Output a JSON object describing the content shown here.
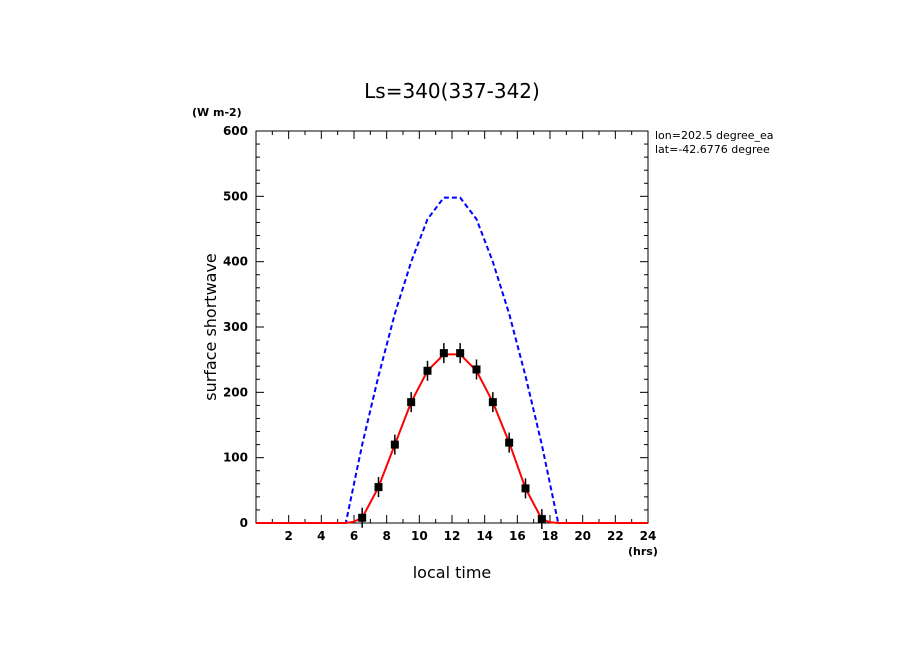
{
  "chart_data": {
    "type": "line",
    "title": "Ls=340(337-342)",
    "xlabel": "local time",
    "ylabel": "surface shortwave",
    "x_unit": "(hrs)",
    "y_unit": "(W m-2)",
    "xlim": [
      0,
      24
    ],
    "ylim": [
      0,
      600
    ],
    "x_ticks": [
      2,
      4,
      6,
      8,
      10,
      12,
      14,
      16,
      18,
      20,
      22,
      24
    ],
    "y_ticks": [
      0,
      100,
      200,
      300,
      400,
      500,
      600
    ],
    "annotations": [
      "lon=202.5 degree_ea",
      "lat=-42.6776 degree"
    ],
    "colors": {
      "dashed": "#0000ff",
      "solid": "#ff0000",
      "markers": "#000000"
    },
    "series": [
      {
        "style": "dashed",
        "x": [
          0,
          1,
          2,
          3,
          4,
          5,
          5.5,
          6.5,
          7.5,
          8.5,
          9.5,
          10.5,
          11.5,
          12.5,
          13.5,
          14.5,
          15.5,
          16.5,
          17.5,
          18.5,
          19,
          20,
          21,
          22,
          23,
          24
        ],
        "values": [
          0,
          0,
          0,
          0,
          0,
          0,
          0,
          120,
          225,
          320,
          400,
          465,
          498,
          498,
          465,
          400,
          320,
          225,
          120,
          0,
          0,
          0,
          0,
          0,
          0,
          0
        ]
      },
      {
        "style": "solid",
        "x": [
          0,
          1,
          2,
          3,
          4,
          5,
          5.5,
          6,
          6.5,
          7.5,
          8.5,
          9.5,
          10.5,
          11.5,
          12,
          12.5,
          13.5,
          14.5,
          15.5,
          16.5,
          17.5,
          18,
          18.5,
          19,
          20,
          21,
          22,
          23,
          24
        ],
        "values": [
          0,
          0,
          0,
          0,
          0,
          0,
          0,
          2,
          8,
          55,
          120,
          185,
          233,
          258,
          258,
          258,
          233,
          185,
          123,
          53,
          6,
          1,
          0,
          0,
          0,
          0,
          0,
          0,
          0
        ]
      },
      {
        "style": "markers",
        "x": [
          6.5,
          7.5,
          8.5,
          9.5,
          10.5,
          11.5,
          12.5,
          13.5,
          14.5,
          15.5,
          16.5,
          17.5
        ],
        "values": [
          8,
          55,
          120,
          185,
          233,
          260,
          260,
          235,
          185,
          123,
          53,
          6
        ]
      }
    ]
  }
}
